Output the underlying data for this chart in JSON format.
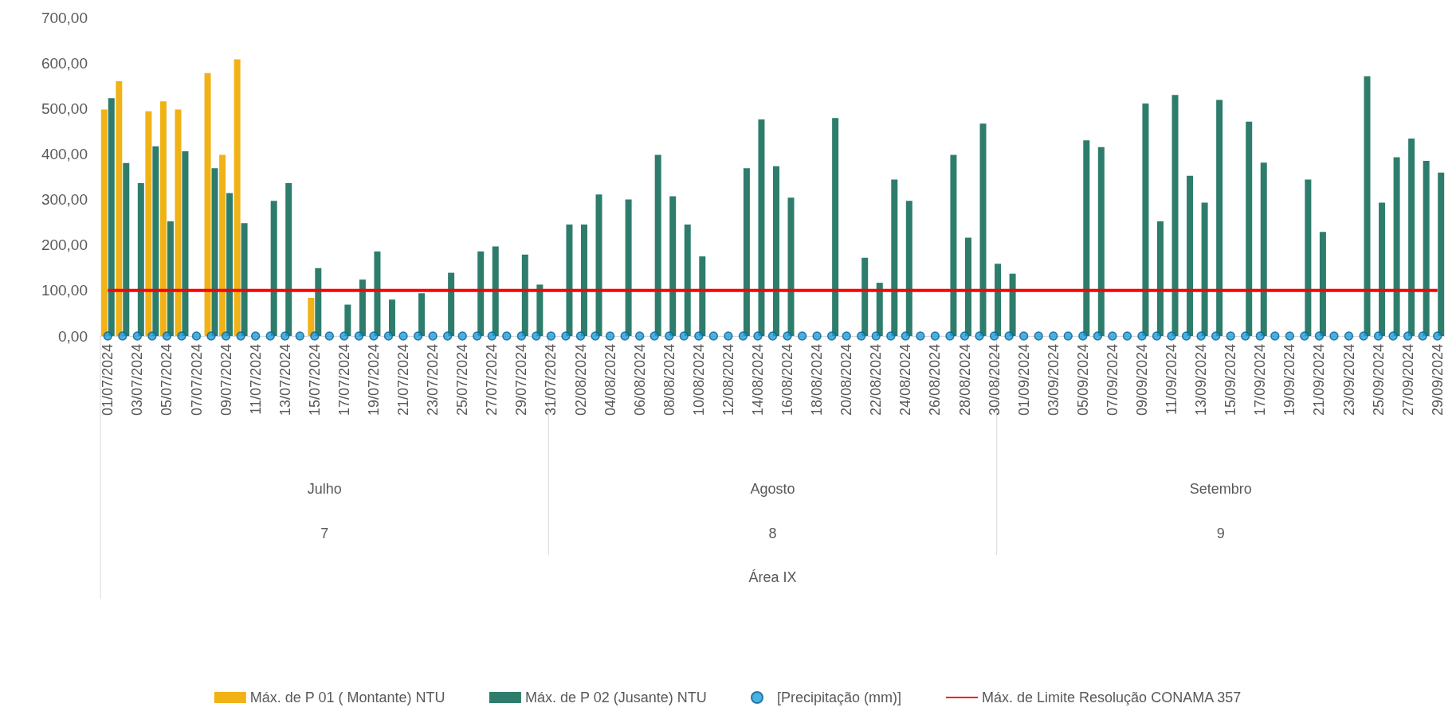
{
  "chart_data": {
    "type": "bar",
    "annotations": [
      "Julho",
      "Agosto",
      "Setembro",
      "7",
      "8",
      "9",
      "Área IX"
    ],
    "categories": [
      "01/07/2024",
      null,
      "03/07/2024",
      null,
      "05/07/2024",
      null,
      "07/07/2024",
      null,
      "09/07/2024",
      null,
      "11/07/2024",
      null,
      "13/07/2024",
      null,
      "15/07/2024",
      null,
      "17/07/2024",
      null,
      "19/07/2024",
      null,
      "21/07/2024",
      null,
      "23/07/2024",
      null,
      "25/07/2024",
      null,
      "27/07/2024",
      null,
      "29/07/2024",
      null,
      "31/07/2024",
      null,
      "02/08/2024",
      null,
      "04/08/2024",
      null,
      "06/08/2024",
      null,
      "08/08/2024",
      null,
      "10/08/2024",
      null,
      "12/08/2024",
      null,
      "14/08/2024",
      null,
      "16/08/2024",
      null,
      "18/08/2024",
      null,
      "20/08/2024",
      null,
      "22/08/2024",
      null,
      "24/08/2024",
      null,
      "26/08/2024",
      null,
      "28/08/2024",
      null,
      "30/08/2024",
      null,
      "01/09/2024",
      null,
      "03/09/2024",
      null,
      "05/09/2024",
      null,
      "07/09/2024",
      null,
      "09/09/2024",
      null,
      "11/09/2024",
      null,
      "13/09/2024",
      null,
      "15/09/2024",
      null,
      "17/09/2024",
      null,
      "19/09/2024",
      null,
      "21/09/2024",
      null,
      "23/09/2024",
      null,
      "25/09/2024",
      null,
      "27/09/2024",
      null,
      "29/09/2024"
    ],
    "series": [
      {
        "name": "Máx. de P 01 ( Montante) NTU",
        "color": "#f0b216",
        "values": [
          498,
          560,
          null,
          494,
          516,
          498,
          null,
          578,
          398,
          608,
          null,
          null,
          null,
          null,
          84,
          null,
          null,
          null,
          null,
          null,
          null,
          null,
          null,
          null,
          null,
          null,
          null,
          null,
          null,
          null,
          null,
          null,
          null,
          null,
          null,
          null,
          null,
          null,
          null,
          null,
          null,
          null,
          null,
          null,
          null,
          null,
          null,
          null,
          null,
          null,
          null,
          null,
          null,
          null,
          null,
          null,
          null,
          null,
          null,
          null,
          null,
          null,
          null,
          null,
          null,
          null,
          null,
          null,
          null,
          null,
          null,
          null,
          null,
          null,
          null,
          null,
          null,
          null,
          null,
          null,
          null,
          null,
          null,
          null,
          null,
          null,
          null,
          null,
          null,
          null,
          null
        ]
      },
      {
        "name": "Máx. de P 02 (Jusante) NTU",
        "color": "#2e7d6c",
        "values": [
          523,
          380,
          336,
          417,
          252,
          406,
          null,
          369,
          314,
          248,
          null,
          297,
          336,
          null,
          149,
          null,
          69,
          124,
          186,
          80,
          null,
          94,
          null,
          139,
          null,
          186,
          197,
          null,
          179,
          113,
          null,
          245,
          245,
          311,
          null,
          300,
          null,
          398,
          307,
          245,
          175,
          null,
          null,
          369,
          476,
          373,
          304,
          null,
          null,
          479,
          null,
          172,
          117,
          344,
          297,
          null,
          null,
          398,
          216,
          467,
          159,
          137,
          null,
          null,
          null,
          null,
          430,
          415,
          null,
          null,
          511,
          252,
          530,
          352,
          293,
          519,
          null,
          471,
          381,
          null,
          null,
          344,
          229,
          null,
          null,
          571,
          293,
          393,
          434,
          385,
          359
        ]
      },
      {
        "name": "[Precipitação (mm)]",
        "type": "scatter",
        "marker": "circle",
        "color": "#1a9fd8",
        "values": [
          0,
          0,
          0,
          0,
          0,
          0,
          0,
          0,
          0,
          0,
          0,
          0,
          0,
          0,
          0,
          0,
          0,
          0,
          0,
          0,
          0,
          0,
          0,
          0,
          0,
          0,
          0,
          0,
          0,
          0,
          0,
          0,
          0,
          0,
          0,
          0,
          0,
          0,
          0,
          0,
          0,
          0,
          0,
          0,
          0,
          0,
          0,
          0,
          0,
          0,
          0,
          0,
          0,
          0,
          0,
          0,
          0,
          0,
          0,
          0,
          0,
          0,
          0,
          0,
          0,
          0,
          0,
          0,
          0,
          0,
          0,
          0,
          0,
          0,
          0,
          0,
          0,
          0,
          0,
          0,
          0,
          0,
          0,
          0,
          0,
          0,
          0,
          0,
          0,
          0,
          0
        ]
      },
      {
        "name": "Máx. de Limite Resolução CONAMA 357",
        "type": "line",
        "marker": "none",
        "color": "#ff0000",
        "values": [
          100,
          100,
          100,
          100,
          100,
          100,
          100,
          100,
          100,
          100,
          100,
          100,
          100,
          100,
          100,
          100,
          100,
          100,
          100,
          100,
          100,
          100,
          100,
          100,
          100,
          100,
          100,
          100,
          100,
          100,
          100,
          100,
          100,
          100,
          100,
          100,
          100,
          100,
          100,
          100,
          100,
          100,
          100,
          100,
          100,
          100,
          100,
          100,
          100,
          100,
          100,
          100,
          100,
          100,
          100,
          100,
          100,
          100,
          100,
          100,
          100,
          100,
          100,
          100,
          100,
          100,
          100,
          100,
          100,
          100,
          100,
          100,
          100,
          100,
          100,
          100,
          100,
          100,
          100,
          100,
          100,
          100,
          100,
          100,
          100,
          100,
          100,
          100,
          100,
          100,
          100
        ]
      }
    ],
    "ylim": [
      0,
      700
    ],
    "yticks": [
      {
        "value": 0,
        "label": "0,00"
      },
      {
        "value": 100,
        "label": "100,00"
      },
      {
        "value": 200,
        "label": "200,00"
      },
      {
        "value": 300,
        "label": "300,00"
      },
      {
        "value": 400,
        "label": "400,00"
      },
      {
        "value": 500,
        "label": "500,00"
      },
      {
        "value": 600,
        "label": "600,00"
      },
      {
        "value": 700,
        "label": "700,00"
      }
    ],
    "grid": false,
    "legend": "bottom"
  }
}
